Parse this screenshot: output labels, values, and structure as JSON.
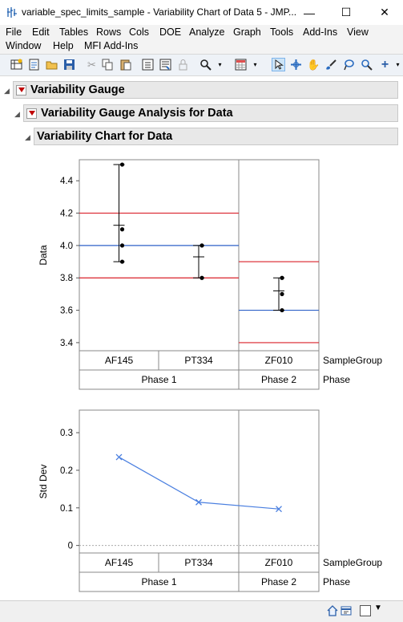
{
  "window": {
    "title": "variable_spec_limits_sample - Variability Chart of Data 5 - JMP...",
    "minimize_glyph": "—",
    "maximize_glyph": "☐",
    "close_glyph": "✕"
  },
  "menu": {
    "row1": [
      "File",
      "Edit",
      "Tables",
      "Rows",
      "Cols",
      "DOE",
      "Analyze",
      "Graph",
      "Tools",
      "Add-Ins",
      "View"
    ],
    "row2": [
      "Window",
      "Help",
      "MFI Add-Ins"
    ]
  },
  "outline": {
    "level1": "Variability Gauge",
    "level2": "Variability Gauge Analysis for Data",
    "level3": "Variability Chart for Data"
  },
  "chart_data": [
    {
      "type": "scatter",
      "title": "",
      "ylabel": "Data",
      "ylim": [
        3.35,
        4.53
      ],
      "yticks": [
        "3.4",
        "3.6",
        "3.8",
        "4.0",
        "4.2",
        "4.4"
      ],
      "categories": [
        "AF145",
        "PT334",
        "ZF010"
      ],
      "groups": [
        {
          "name": "Phase 1",
          "categories": [
            "AF145",
            "PT334"
          ]
        },
        {
          "name": "Phase 2",
          "categories": [
            "ZF010"
          ]
        }
      ],
      "points": {
        "AF145": [
          4.5,
          4.1,
          4.0,
          3.9
        ],
        "PT334": [
          4.0,
          3.8
        ],
        "ZF010": [
          3.8,
          3.7,
          3.6
        ]
      },
      "means": {
        "AF145": 4.125,
        "PT334": 3.93,
        "ZF010": 3.72
      },
      "spec_limits": {
        "Phase 1": {
          "usl": 4.2,
          "lsl": 3.8,
          "target": 4.0
        },
        "Phase 2": {
          "usl": 3.9,
          "lsl": 3.4,
          "target": 3.6
        }
      },
      "x_factor_labels": [
        "SampleGroup",
        "Phase"
      ]
    },
    {
      "type": "line",
      "title": "",
      "ylabel": "Std Dev",
      "ylim": [
        -0.02,
        0.36
      ],
      "yticks": [
        "0",
        "0.1",
        "0.2",
        "0.3"
      ],
      "categories": [
        "AF145",
        "PT334",
        "ZF010"
      ],
      "groups": [
        {
          "name": "Phase 1",
          "categories": [
            "AF145",
            "PT334"
          ]
        },
        {
          "name": "Phase 2",
          "categories": [
            "ZF010"
          ]
        }
      ],
      "values": [
        0.235,
        0.115,
        0.097
      ],
      "x_factor_labels": [
        "SampleGroup",
        "Phase"
      ]
    }
  ],
  "colors": {
    "spec_limit": "#d9202a",
    "target": "#2e62c8",
    "std_line": "#4a7fe0"
  },
  "icons": {
    "app": "jmp-variability-icon",
    "status_home": "home-icon",
    "status_window": "window-list-icon"
  }
}
